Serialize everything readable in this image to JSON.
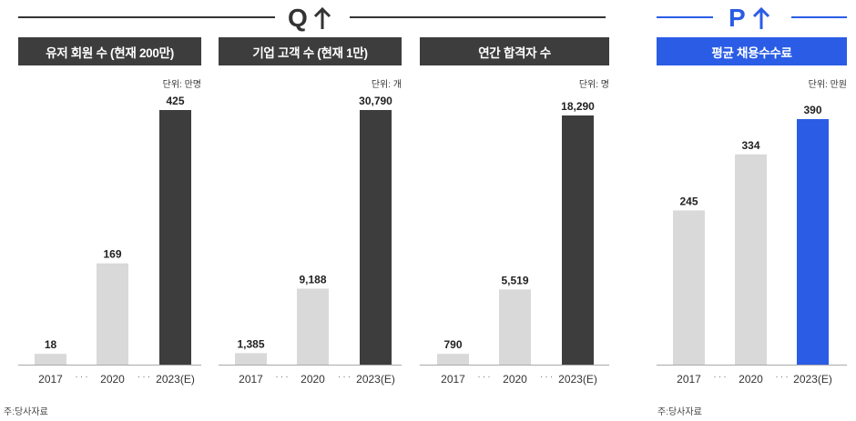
{
  "groups": [
    {
      "letter": "Q",
      "color": "#333333"
    },
    {
      "letter": "P",
      "color": "#2a5ce6"
    }
  ],
  "colors": {
    "dark": "#3d3d3d",
    "light": "#d9d9d9",
    "blue": "#2a5ce6",
    "axis": "#aaaaaa"
  },
  "source_left": "주:당사자료",
  "source_right": "주:당사자료",
  "ellipsis": "· · ·",
  "chart_data": [
    {
      "type": "bar",
      "title": "유저 회원 수 (현재 200만)",
      "unit": "단위: 만명",
      "categories": [
        "2017",
        "2020",
        "2023(E)"
      ],
      "values": [
        18,
        169,
        425
      ],
      "labels": [
        "18",
        "169",
        "425"
      ],
      "ylim": [
        0,
        425
      ]
    },
    {
      "type": "bar",
      "title": "기업 고객 수 (현재 1만)",
      "unit": "단위: 개",
      "categories": [
        "2017",
        "2020",
        "2023(E)"
      ],
      "values": [
        1385,
        9188,
        30790
      ],
      "labels": [
        "1,385",
        "9,188",
        "30,790"
      ],
      "ylim": [
        0,
        30790
      ]
    },
    {
      "type": "bar",
      "title": "연간 합격자 수",
      "unit": "단위: 명",
      "categories": [
        "2017",
        "2020",
        "2023(E)"
      ],
      "values": [
        790,
        5519,
        18290
      ],
      "labels": [
        "790",
        "5,519",
        "18,290"
      ],
      "ylim": [
        0,
        18290
      ]
    },
    {
      "type": "bar",
      "title": "평균 채용수수료",
      "unit": "단위: 만원",
      "categories": [
        "2017",
        "2020",
        "2023(E)"
      ],
      "values": [
        245,
        334,
        390
      ],
      "labels": [
        "245",
        "334",
        "390"
      ],
      "ylim": [
        0,
        390
      ]
    }
  ]
}
